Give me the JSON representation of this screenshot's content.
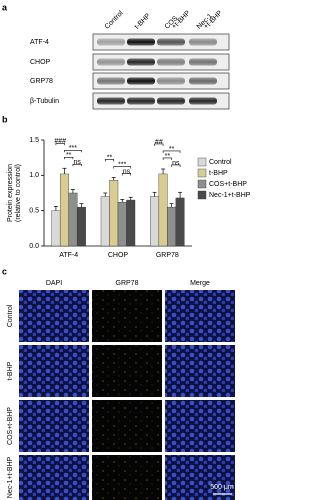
{
  "panel_labels": [
    "a",
    "b",
    "c"
  ],
  "blot": {
    "lanes": [
      [
        "Control"
      ],
      [
        "t-BHP"
      ],
      [
        "COS",
        "+t-BHP"
      ],
      [
        "Nec-1",
        "+t-BHP"
      ]
    ],
    "proteins": [
      "ATF-4",
      "CHOP",
      "GRP78",
      "β-Tubulin"
    ]
  },
  "chart_data": {
    "type": "bar",
    "ylabel": [
      "Protein expression",
      "(relative to control)"
    ],
    "categories": [
      "ATF-4",
      "CHOP",
      "GRP78"
    ],
    "ylim": [
      0,
      1.5
    ],
    "yticks": [
      {
        "value": 0,
        "label": "0.0"
      },
      {
        "value": 0.5,
        "label": "0.5"
      },
      {
        "value": 1,
        "label": "1.0"
      },
      {
        "value": 1.5,
        "label": "1.5"
      }
    ],
    "series": [
      {
        "name": "Control",
        "color": "#d9d9d9",
        "values": [
          0.5,
          0.7,
          0.7
        ],
        "errors": [
          0.06,
          0.05,
          0.06
        ]
      },
      {
        "name": "t-BHP",
        "color": "#d8cc93",
        "values": [
          1.02,
          0.93,
          1.02
        ],
        "errors": [
          0.08,
          0.04,
          0.07
        ]
      },
      {
        "name": "COS+t-BHP",
        "color": "#8f8f8f",
        "values": [
          0.75,
          0.62,
          0.55
        ],
        "errors": [
          0.05,
          0.04,
          0.05
        ]
      },
      {
        "name": "Nec-1+t-BHP",
        "color": "#4a4a4a",
        "values": [
          0.55,
          0.65,
          0.68
        ],
        "errors": [
          0.05,
          0.04,
          0.08
        ]
      }
    ],
    "annotations": [
      [
        "###",
        "**",
        "***",
        "ns"
      ],
      [
        "**",
        "***",
        "ns"
      ],
      [
        "##",
        "**",
        "**",
        "ns"
      ]
    ]
  },
  "microscopy": {
    "columns": [
      "DAPI",
      "GRP78",
      "Merge"
    ],
    "rows": [
      "Control",
      "t-BHP",
      "COS+t-BHP",
      "Nec-1+t-BHP"
    ],
    "scale_bar": "500 μm"
  }
}
